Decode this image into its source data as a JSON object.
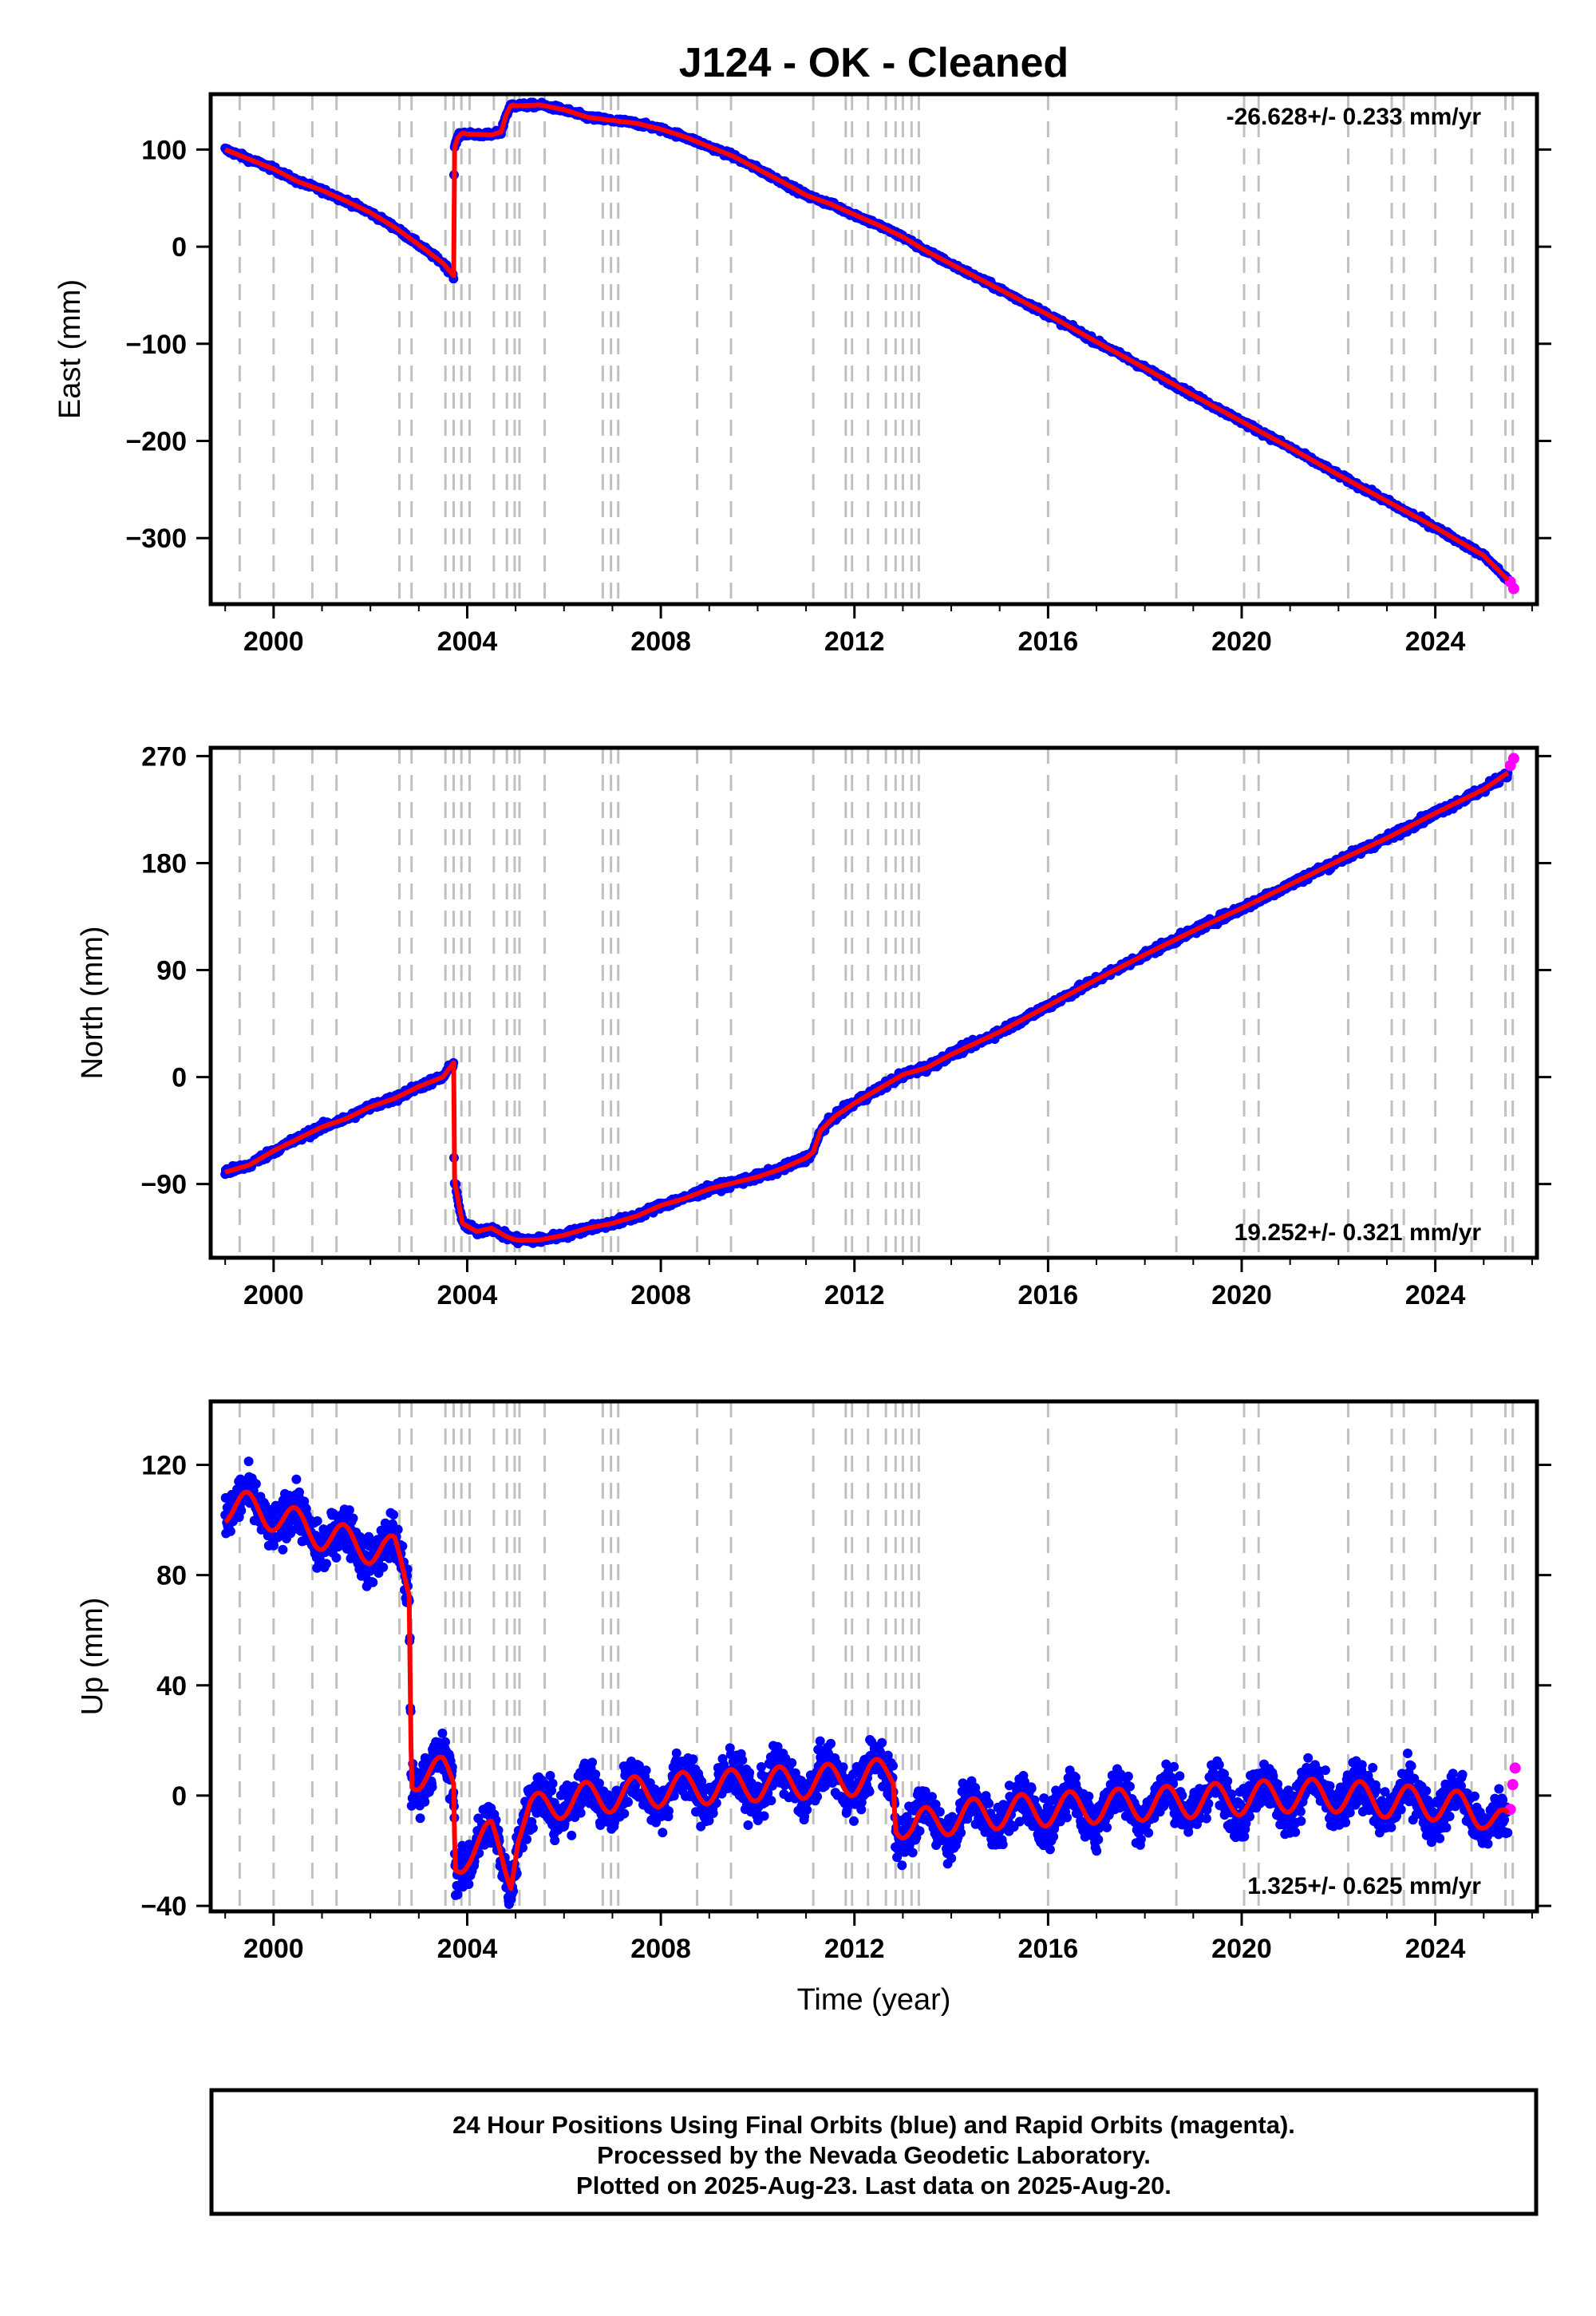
{
  "chart_data": {
    "type": "scatter",
    "title": "J124  - OK - Cleaned",
    "xlabel": "Time (year)",
    "xlim": [
      1998.7,
      2026.1
    ],
    "x_ticks": [
      2000,
      2004,
      2008,
      2012,
      2016,
      2020,
      2024
    ],
    "x_tick_labels": [
      "2000",
      "2004",
      "2008",
      "2012",
      "2016",
      "2020",
      "2024"
    ],
    "grid": false,
    "equipment_change_lines": [
      1999.3,
      2000.0,
      2000.8,
      2001.3,
      2002.6,
      2002.85,
      2003.55,
      2003.72,
      2003.88,
      2004.05,
      2004.55,
      2004.82,
      2004.98,
      2005.08,
      2005.6,
      2006.8,
      2006.97,
      2007.12,
      2008.75,
      2009.45,
      2011.15,
      2011.82,
      2011.95,
      2012.28,
      2012.65,
      2012.85,
      2013.0,
      2013.18,
      2013.33,
      2016.0,
      2018.65,
      2020.05,
      2020.35,
      2022.2,
      2023.1,
      2023.35,
      2024.0,
      2024.75,
      2025.45,
      2025.6
    ],
    "series_legend": {
      "final": "24 Hour Positions Using Final Orbits (blue)",
      "rapid": "Rapid Orbits (magenta)",
      "model": "fit"
    },
    "colors": {
      "final": "#0000ff",
      "rapid": "#ff00ff",
      "model": "#ff0000",
      "event_line": "#c0c0c0"
    },
    "panels": [
      {
        "name": "east",
        "ylabel": "East (mm)",
        "ylim": [
          -368,
          157
        ],
        "y_ticks": [
          -300,
          -200,
          -100,
          0,
          100
        ],
        "y_tick_labels": [
          "−300",
          "−200",
          "−100",
          "0",
          "100"
        ],
        "rate_text": "-26.628+/- 0.233 mm/yr",
        "rate_position": "top-right",
        "noise_mm": 2.5,
        "series_x": [
          1999.0,
          1999.5,
          2000.0,
          2000.5,
          2001.0,
          2001.5,
          2002.0,
          2002.5,
          2003.0,
          2003.5,
          2003.72,
          2003.73,
          2003.8,
          2003.9,
          2004.0,
          2004.5,
          2004.7,
          2004.8,
          2004.9,
          2004.95,
          2005.0,
          2005.5,
          2006.0,
          2006.5,
          2007.0,
          2007.5,
          2008.0,
          2008.5,
          2009.0,
          2009.5,
          2010.0,
          2010.5,
          2011.0,
          2011.5,
          2012.0,
          2012.5,
          2013.0,
          2013.5,
          2014.0,
          2015.0,
          2016.0,
          2017.0,
          2018.0,
          2019.0,
          2020.0,
          2021.0,
          2022.0,
          2023.0,
          2024.0,
          2025.0,
          2025.5
        ],
        "series_y": [
          100,
          90,
          80,
          67,
          58,
          47,
          35,
          20,
          2,
          -17,
          -30,
          100,
          112,
          117,
          116,
          115,
          118,
          135,
          145,
          146,
          145,
          146,
          141,
          133,
          130,
          127,
          121,
          113,
          103,
          93,
          80,
          67,
          53,
          44,
          33,
          22,
          10,
          -5,
          -18,
          -44,
          -70,
          -98,
          -125,
          -153,
          -180,
          -207,
          -235,
          -262,
          -289,
          -318,
          -343
        ],
        "rapid_x": [
          2025.55,
          2025.62
        ],
        "rapid_y": [
          -345,
          -352
        ]
      },
      {
        "name": "north",
        "ylabel": "North (mm)",
        "ylim": [
          -152,
          277
        ],
        "y_ticks": [
          -90,
          0,
          90,
          180,
          270
        ],
        "y_tick_labels": [
          "−90",
          "0",
          "90",
          "180",
          "270"
        ],
        "rate_text": "19.252+/- 0.321 mm/yr",
        "rate_position": "bottom-right",
        "noise_mm": 3,
        "series_x": [
          1999.0,
          1999.5,
          2000.0,
          2000.5,
          2001.0,
          2001.5,
          2002.0,
          2002.5,
          2003.0,
          2003.5,
          2003.72,
          2003.73,
          2003.9,
          2004.2,
          2004.5,
          2004.8,
          2005.0,
          2005.5,
          2006.0,
          2006.5,
          2007.0,
          2007.5,
          2008.0,
          2008.5,
          2009.0,
          2009.5,
          2010.0,
          2010.5,
          2011.0,
          2011.15,
          2011.3,
          2011.6,
          2012.0,
          2012.5,
          2013.0,
          2013.5,
          2014.0,
          2015.0,
          2016.0,
          2017.0,
          2018.0,
          2019.0,
          2020.0,
          2021.0,
          2022.0,
          2023.0,
          2024.0,
          2025.0,
          2025.5
        ],
        "series_y": [
          -80,
          -74,
          -62,
          -52,
          -42,
          -35,
          -25,
          -18,
          -8,
          0,
          12,
          -85,
          -123,
          -130,
          -127,
          -134,
          -137,
          -137,
          -133,
          -127,
          -123,
          -117,
          -108,
          -102,
          -94,
          -89,
          -84,
          -77,
          -68,
          -63,
          -45,
          -33,
          -22,
          -10,
          2,
          8,
          19,
          38,
          60,
          82,
          103,
          123,
          142,
          162,
          182,
          201,
          222,
          242,
          256
        ],
        "rapid_x": [
          2025.55,
          2025.62
        ],
        "rapid_y": [
          262,
          268
        ]
      },
      {
        "name": "up",
        "ylabel": "Up (mm)",
        "ylim": [
          -42,
          143
        ],
        "y_ticks": [
          -40,
          0,
          40,
          80,
          120
        ],
        "y_tick_labels": [
          "−40",
          "0",
          "40",
          "80",
          "120"
        ],
        "rate_text": "1.325+/- 0.625 mm/yr",
        "rate_position": "bottom-right",
        "noise_mm": 8,
        "series_x": [
          1999.0,
          1999.5,
          2000.0,
          2000.5,
          2001.0,
          2001.5,
          2002.0,
          2002.5,
          2002.8,
          2002.85,
          2003.0,
          2003.5,
          2003.72,
          2003.75,
          2004.0,
          2004.5,
          2004.9,
          2005.05,
          2005.3,
          2006.0,
          2007.0,
          2008.0,
          2009.0,
          2010.0,
          2011.0,
          2012.0,
          2012.8,
          2012.85,
          2013.2,
          2013.5,
          2014.0,
          2015.0,
          2016.0,
          2017.0,
          2018.0,
          2019.0,
          2020.0,
          2021.0,
          2022.0,
          2023.0,
          2024.0,
          2025.0,
          2025.5
        ],
        "series_y": [
          105,
          104,
          102,
          98,
          95,
          92,
          90,
          88,
          76,
          8,
          8,
          8,
          5,
          -25,
          -20,
          -15,
          -28,
          -12,
          -6,
          -2,
          0,
          2,
          3,
          4,
          5,
          6,
          8,
          -8,
          -12,
          -10,
          -8,
          -6,
          -5,
          -4,
          -3,
          -2,
          -1,
          0,
          0,
          -2,
          -3,
          -6,
          -12
        ],
        "seasonal_amp": 6,
        "rapid_x": [
          2025.55,
          2025.6,
          2025.65
        ],
        "rapid_y": [
          -5,
          4,
          10
        ]
      }
    ]
  },
  "footer": {
    "line1": "24 Hour Positions Using Final Orbits (blue) and Rapid Orbits (magenta).",
    "line2": "Processed by the Nevada Geodetic Laboratory.",
    "line3": "Plotted on 2025-Aug-23. Last data on 2025-Aug-20."
  }
}
